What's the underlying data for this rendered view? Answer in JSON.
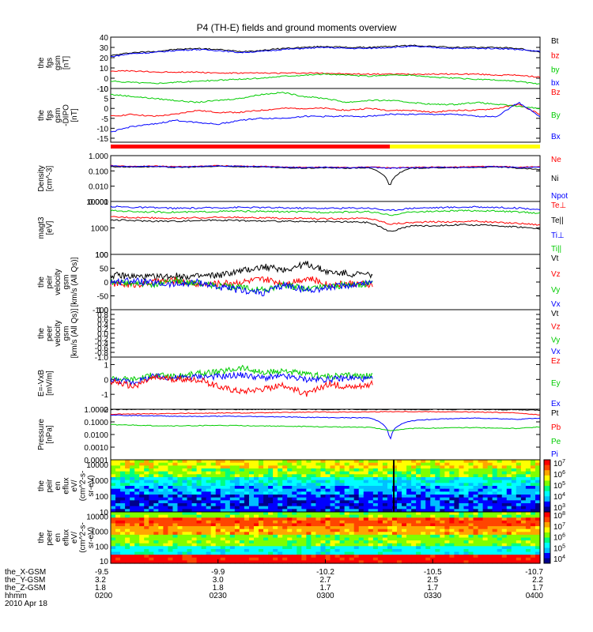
{
  "title": "P4 (TH-E) fields and ground moments overview",
  "date": "2010 Apr 18",
  "colors": {
    "black": "#000000",
    "red": "#ff0000",
    "green": "#00cc00",
    "blue": "#0000ff",
    "yellow": "#ffff00",
    "pink": "#ff00ff"
  },
  "chart_data": [
    {
      "type": "line",
      "ylabel": [
        "the",
        "fgs",
        "gsm",
        "[nT]"
      ],
      "ylim": [
        -10,
        40
      ],
      "yticks": [
        "40",
        "30",
        "20",
        "10",
        "0",
        "-10"
      ],
      "legend": [
        {
          "name": "Bt",
          "color": "black"
        },
        {
          "name": "bz",
          "color": "red"
        },
        {
          "name": "by",
          "color": "green"
        },
        {
          "name": "bx",
          "color": "blue"
        }
      ],
      "series": [
        {
          "name": "Bt",
          "values": [
            22,
            25,
            26,
            28,
            29,
            28,
            26,
            27,
            29,
            30,
            31,
            30,
            30,
            31,
            32,
            31,
            30,
            30,
            30,
            29,
            25
          ]
        },
        {
          "name": "bx",
          "values": [
            21,
            24,
            25,
            27,
            28,
            27,
            25,
            26,
            28,
            29,
            30,
            29,
            29,
            30,
            31,
            30,
            29,
            29,
            29,
            28,
            26
          ]
        },
        {
          "name": "bz",
          "values": [
            7,
            7,
            6,
            6,
            6,
            5,
            5,
            5,
            5,
            5,
            5,
            4,
            4,
            4,
            4,
            4,
            4,
            4,
            3,
            3,
            1
          ]
        },
        {
          "name": "by",
          "values": [
            -3,
            -4,
            -5,
            -4,
            -3,
            -2,
            -1,
            0,
            2,
            3,
            4,
            3,
            2,
            3,
            3,
            1,
            0,
            -1,
            -2,
            -3,
            -6
          ]
        }
      ]
    },
    {
      "type": "line",
      "ylabel": [
        "the",
        "fgs",
        "gsm",
        "-DIPO",
        "[nT]"
      ],
      "ylim": [
        -17,
        10
      ],
      "yticks": [
        "10",
        "5",
        "0",
        "-5",
        "-10",
        "-15"
      ],
      "legend": [
        {
          "name": "Bz",
          "color": "red"
        },
        {
          "name": "By",
          "color": "green"
        },
        {
          "name": "Bx",
          "color": "blue"
        }
      ],
      "series": [
        {
          "name": "Bz",
          "values": [
            -4,
            -3,
            -4,
            -3,
            -1,
            -2,
            -2,
            -1,
            0,
            0,
            0,
            -1,
            0,
            -1,
            -1,
            -2,
            -1,
            -1,
            0,
            2,
            -3
          ]
        },
        {
          "name": "By",
          "values": [
            7,
            6,
            5,
            4,
            3,
            4,
            5,
            7,
            8,
            6,
            5,
            3,
            4,
            4,
            3,
            2,
            2,
            3,
            2,
            1,
            0
          ]
        },
        {
          "name": "Bx",
          "values": [
            -12,
            -9,
            -8,
            -6,
            -7,
            -8,
            -6,
            -5,
            -5,
            -4,
            -4,
            -4,
            -4,
            -3,
            -3,
            -3,
            -3,
            -4,
            -4,
            3,
            -4
          ]
        }
      ]
    },
    {
      "type": "line",
      "ylabel": [
        "Density",
        "[cm^-3]"
      ],
      "ylim": [
        0.001,
        1
      ],
      "yscale": "log",
      "yticks": [
        "1.000",
        "0.100",
        "0.010",
        "0.001"
      ],
      "legend": [
        {
          "name": "Ne",
          "color": "red"
        },
        {
          "name": "Ni",
          "color": "black"
        },
        {
          "name": "Npot",
          "color": "blue"
        }
      ],
      "series": [
        {
          "name": "Ne",
          "values": [
            0.22,
            0.2,
            0.21,
            0.19,
            0.2,
            0.22,
            0.21,
            0.2,
            0.18,
            0.17,
            0.18,
            0.17,
            0.18,
            0.16,
            0.17,
            0.18,
            0.18,
            0.19,
            0.2,
            0.17,
            0.2
          ]
        },
        {
          "name": "Ni",
          "values": [
            0.19,
            0.18,
            0.19,
            0.17,
            0.18,
            0.2,
            0.19,
            0.18,
            0.16,
            0.15,
            0.16,
            0.15,
            0.16,
            0.008,
            0.15,
            0.16,
            0.16,
            0.17,
            0.18,
            0.15,
            0.12
          ]
        },
        {
          "name": "Npot",
          "values": [
            0.21,
            0.19,
            0.2,
            0.18,
            0.19,
            0.21,
            0.2,
            0.19,
            0.17,
            0.16,
            0.17,
            0.16,
            0.17,
            0.15,
            0.16,
            0.17,
            0.17,
            0.18,
            0.19,
            0.16,
            0.18
          ]
        }
      ]
    },
    {
      "type": "line",
      "ylabel": [
        "magt3",
        "[eV]"
      ],
      "ylim": [
        100,
        10000
      ],
      "yscale": "log",
      "yticks": [
        "10000",
        "1000",
        "100"
      ],
      "legend": [
        {
          "name": "Te⊥",
          "color": "red"
        },
        {
          "name": "Te||",
          "color": "black"
        },
        {
          "name": "Ti⊥",
          "color": "blue"
        },
        {
          "name": "Ti||",
          "color": "green"
        }
      ],
      "series": [
        {
          "name": "Ti⊥",
          "values": [
            6500,
            6000,
            5800,
            5500,
            5600,
            5800,
            6000,
            5900,
            5700,
            5600,
            5500,
            5600,
            5700,
            4500,
            5600,
            5800,
            6000,
            6200,
            6000,
            5600,
            5000
          ]
        },
        {
          "name": "Ti||",
          "values": [
            4500,
            4200,
            4000,
            3900,
            4000,
            4200,
            4300,
            4200,
            4100,
            4000,
            3900,
            4000,
            4100,
            3000,
            4000,
            4200,
            4400,
            4500,
            4300,
            4000,
            3600
          ]
        },
        {
          "name": "Te⊥",
          "values": [
            2600,
            2500,
            2400,
            2300,
            2400,
            2500,
            2500,
            2400,
            2300,
            2300,
            2200,
            2300,
            2300,
            1400,
            1600,
            1700,
            1700,
            1800,
            1600,
            1500,
            1300
          ]
        },
        {
          "name": "Te||",
          "values": [
            2000,
            1900,
            1800,
            1800,
            1900,
            2000,
            1900,
            1800,
            1800,
            1700,
            1700,
            1700,
            1600,
            700,
            1200,
            1200,
            1300,
            1300,
            1200,
            1100,
            900
          ]
        }
      ]
    },
    {
      "type": "line",
      "ylabel": [
        "the",
        "peir",
        "velocity",
        "gsm",
        "[km/s (All Qs)]"
      ],
      "ylim": [
        -100,
        100
      ],
      "yticks": [
        "100",
        "50",
        "0",
        "-50",
        "-100"
      ],
      "legend": [
        {
          "name": "Vt",
          "color": "black"
        },
        {
          "name": "Vz",
          "color": "red"
        },
        {
          "name": "Vy",
          "color": "green"
        },
        {
          "name": "Vx",
          "color": "blue"
        }
      ],
      "series": [
        {
          "name": "Vt",
          "values": [
            25,
            20,
            18,
            22,
            20,
            25,
            40,
            55,
            45,
            65,
            35,
            30,
            25
          ]
        },
        {
          "name": "Vz",
          "values": [
            -5,
            -10,
            0,
            5,
            -8,
            -5,
            0,
            10,
            -5,
            15,
            -10,
            -5,
            -10
          ]
        },
        {
          "name": "Vy",
          "values": [
            0,
            -5,
            -10,
            5,
            -5,
            -15,
            -20,
            -30,
            -10,
            -25,
            -15,
            -10,
            -5
          ]
        },
        {
          "name": "Vx",
          "values": [
            0,
            5,
            -5,
            -10,
            0,
            -20,
            -30,
            -40,
            -10,
            -30,
            -20,
            -10,
            0
          ]
        }
      ]
    },
    {
      "type": "line",
      "ylabel": [
        "the",
        "peer",
        "velocity",
        "gsm",
        "[km/s (All Qs)]"
      ],
      "ylim": [
        -1,
        1
      ],
      "yticks": [
        "1.0",
        "0.8",
        "0.6",
        "0.4",
        "0.2",
        "0.0",
        "-0.2",
        "-0.4",
        "-0.6",
        "-0.8",
        "-1.0"
      ],
      "legend": [
        {
          "name": "Vt",
          "color": "black"
        },
        {
          "name": "Vz",
          "color": "red"
        },
        {
          "name": "Vy",
          "color": "green"
        },
        {
          "name": "Vx",
          "color": "blue"
        }
      ],
      "series": []
    },
    {
      "type": "line",
      "ylabel": [
        "E=-VxB",
        "[mV/m]"
      ],
      "ylim": [
        -2,
        1.5
      ],
      "yticks": [
        "1",
        "0",
        "-1",
        "-2"
      ],
      "legend": [
        {
          "name": "Ez",
          "color": "red"
        },
        {
          "name": "Ey",
          "color": "green"
        },
        {
          "name": "Ex",
          "color": "blue"
        }
      ],
      "series": [
        {
          "name": "Ey",
          "values": [
            0.1,
            0.0,
            0.3,
            0.2,
            0.4,
            0.5,
            0.8,
            0.4,
            0.6,
            0.3,
            0.2,
            0.3,
            0.2
          ]
        },
        {
          "name": "Ex",
          "values": [
            0.0,
            -0.2,
            0.2,
            0.1,
            0.2,
            0.2,
            0.3,
            0.1,
            0.2,
            0.0,
            0.0,
            0.1,
            0.0
          ]
        },
        {
          "name": "Ez",
          "values": [
            -0.1,
            -0.5,
            0.1,
            0.0,
            0.0,
            -0.5,
            -0.8,
            -0.6,
            -0.4,
            -1.0,
            -0.3,
            -0.5,
            -0.3
          ]
        }
      ]
    },
    {
      "type": "line",
      "ylabel": [
        "Pressure",
        "[nPa]"
      ],
      "ylim": [
        0.0001,
        1
      ],
      "yscale": "log",
      "yticks": [
        "1.0000",
        "0.1000",
        "0.0100",
        "0.0010",
        "0.0001"
      ],
      "legend": [
        {
          "name": "Pt",
          "color": "black"
        },
        {
          "name": "Pb",
          "color": "red"
        },
        {
          "name": "Pe",
          "color": "green"
        },
        {
          "name": "Pi",
          "color": "blue"
        }
      ],
      "series": [
        {
          "name": "Pt",
          "values": [
            0.95,
            0.96,
            0.97,
            0.97,
            0.96,
            0.96,
            0.96,
            0.97,
            0.97,
            0.96,
            0.95,
            0.95,
            0.95,
            0.95,
            0.95,
            0.95,
            0.94,
            0.93,
            0.92,
            0.9,
            0.85
          ]
        },
        {
          "name": "Pb",
          "values": [
            0.4,
            0.42,
            0.44,
            0.46,
            0.48,
            0.5,
            0.5,
            0.52,
            0.55,
            0.58,
            0.6,
            0.6,
            0.62,
            0.65,
            0.65,
            0.64,
            0.62,
            0.6,
            0.55,
            0.5,
            0.35
          ]
        },
        {
          "name": "Pi",
          "values": [
            0.35,
            0.32,
            0.3,
            0.28,
            0.27,
            0.28,
            0.27,
            0.26,
            0.25,
            0.23,
            0.22,
            0.21,
            0.21,
            0.0002,
            0.12,
            0.16,
            0.18,
            0.2,
            0.18,
            0.16,
            0.2
          ]
        },
        {
          "name": "Pe",
          "values": [
            0.06,
            0.055,
            0.05,
            0.048,
            0.05,
            0.052,
            0.05,
            0.048,
            0.045,
            0.043,
            0.04,
            0.039,
            0.038,
            0.02,
            0.03,
            0.032,
            0.034,
            0.035,
            0.032,
            0.03,
            0.04
          ]
        }
      ]
    },
    {
      "type": "heatmap",
      "ylabel": [
        "the",
        "peir",
        "en",
        "eflux",
        "eV/",
        "(cm^2-s-",
        "sr-eV)"
      ],
      "ylim": [
        10,
        20000
      ],
      "yscale": "log",
      "yticks": [
        "10000",
        "1000",
        "100",
        "10"
      ],
      "colorbar": {
        "ticks": [
          "10^7",
          "10^6",
          "10^5",
          "10^4",
          "10^3"
        ]
      }
    },
    {
      "type": "heatmap",
      "ylabel": [
        "the",
        "peer",
        "en",
        "eflux",
        "eV/",
        "(cm^2-s-",
        "sr-eV)"
      ],
      "ylim": [
        7,
        20000
      ],
      "yscale": "log",
      "yticks": [
        "10000",
        "1000",
        "100",
        "10"
      ],
      "colorbar": {
        "ticks": [
          "10^8",
          "10^7",
          "10^6",
          "10^5",
          "10^4"
        ]
      }
    }
  ],
  "xaxis": {
    "rows": [
      {
        "label": "the_X-GSM",
        "values": [
          "-9.5",
          "-9.9",
          "-10.2",
          "-10.5",
          "-10.7"
        ]
      },
      {
        "label": "the_Y-GSM",
        "values": [
          "3.2",
          "3.0",
          "2.7",
          "2.5",
          "2.2"
        ]
      },
      {
        "label": "the_Z-GSM",
        "values": [
          "1.8",
          "1.8",
          "1.7",
          "1.7",
          "1.7"
        ]
      },
      {
        "label": "hhmm",
        "values": [
          "0200",
          "0230",
          "0300",
          "0330",
          "0400"
        ]
      }
    ]
  }
}
